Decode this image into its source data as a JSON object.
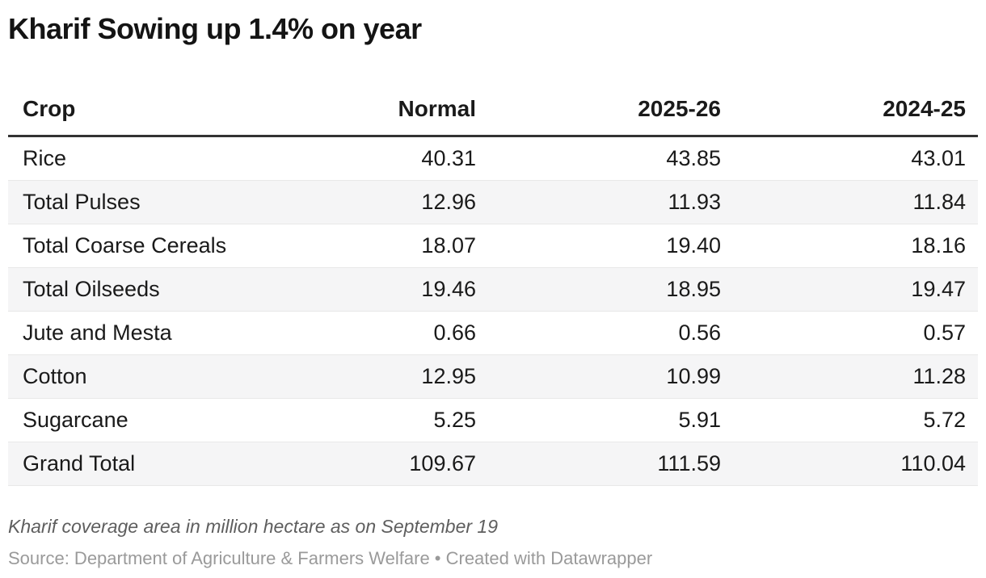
{
  "chart_data": {
    "type": "table",
    "title": "Kharif Sowing up 1.4% on year",
    "columns": [
      "Crop",
      "Normal",
      "2025-26",
      "2024-25"
    ],
    "rows": [
      [
        "Rice",
        "40.31",
        "43.85",
        "43.01"
      ],
      [
        "Total Pulses",
        "12.96",
        "11.93",
        "11.84"
      ],
      [
        "Total Coarse Cereals",
        "18.07",
        "19.40",
        "18.16"
      ],
      [
        "Total Oilseeds",
        "19.46",
        "18.95",
        "19.47"
      ],
      [
        "Jute and Mesta",
        "0.66",
        "0.56",
        "0.57"
      ],
      [
        "Cotton",
        "12.95",
        "10.99",
        "11.28"
      ],
      [
        "Sugarcane",
        "5.25",
        "5.91",
        "5.72"
      ],
      [
        "Grand Total",
        "109.67",
        "111.59",
        "110.04"
      ]
    ],
    "note": "Kharif coverage area in million hectare as on September 19",
    "source_line": "Source: Department of Agriculture & Farmers Welfare • Created with Datawrapper",
    "layout_hints": {
      "striped_rows": true,
      "numeric_alignment": "right",
      "header_rule": "thick"
    },
    "colors": {
      "title_text": "#141414",
      "body_text": "#1a1a1a",
      "stripe_background": "#f5f5f6",
      "row_divider": "#e8e8e8",
      "header_rule": "#333333",
      "note_text": "#5e5e5e",
      "source_text": "#9a9a9a",
      "page_background": "#ffffff"
    }
  }
}
